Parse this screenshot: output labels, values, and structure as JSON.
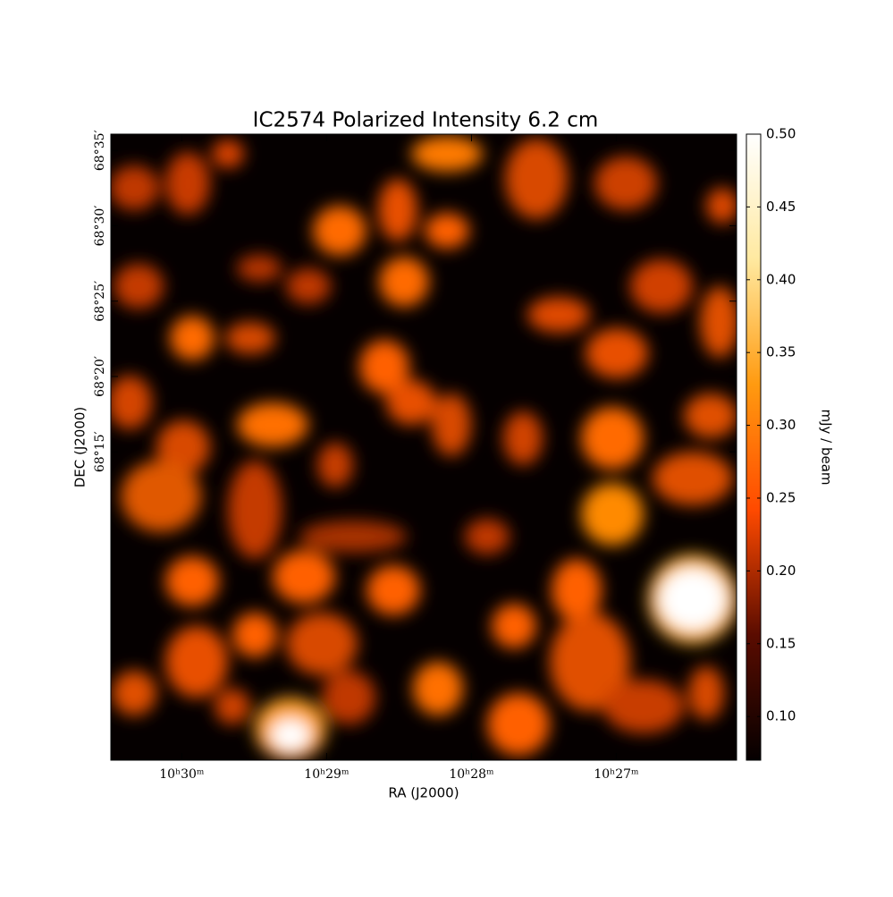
{
  "chart_data": {
    "type": "image",
    "title": "IC2574 Polarized Intensity 6.2 cm",
    "x_label": "RA (J2000)",
    "y_label": "DEC (J2000)",
    "xlim": [
      630.49,
      626.17
    ],
    "xticks": [
      {
        "value": 630,
        "label": "10ʰ30ᵐ"
      },
      {
        "value": 629,
        "label": "10ʰ29ᵐ"
      },
      {
        "value": 628,
        "label": "10ʰ28ᵐ"
      },
      {
        "value": 627,
        "label": "10ʰ27ᵐ"
      }
    ],
    "ylim": [
      4074.54,
      4116.08
    ],
    "yticks": [
      {
        "value": 4115,
        "label": "68°35′"
      },
      {
        "value": 4110,
        "label": "68°30′"
      },
      {
        "value": 4105,
        "label": "68°25′"
      },
      {
        "value": 4100,
        "label": "68°20′"
      },
      {
        "value": 4095,
        "label": "68°15′"
      }
    ],
    "colorbar": {
      "label": "mJy / beam",
      "lim": [
        0.07,
        0.5
      ],
      "ticks": [
        {
          "value": 0.1,
          "label": "0.10"
        },
        0.15,
        {
          "value": 0.2,
          "label": "0.20"
        },
        0.25,
        {
          "value": 0.3,
          "label": "0.30"
        },
        0.35,
        {
          "value": 0.4,
          "label": "0.40"
        },
        0.45,
        {
          "value": 0.5,
          "label": "0.50"
        }
      ],
      "colormap": [
        "#050000",
        "#5a0c00",
        "#ff4a00",
        "#ff9a10",
        "#ffe9a0",
        "#ffffff"
      ]
    }
  }
}
